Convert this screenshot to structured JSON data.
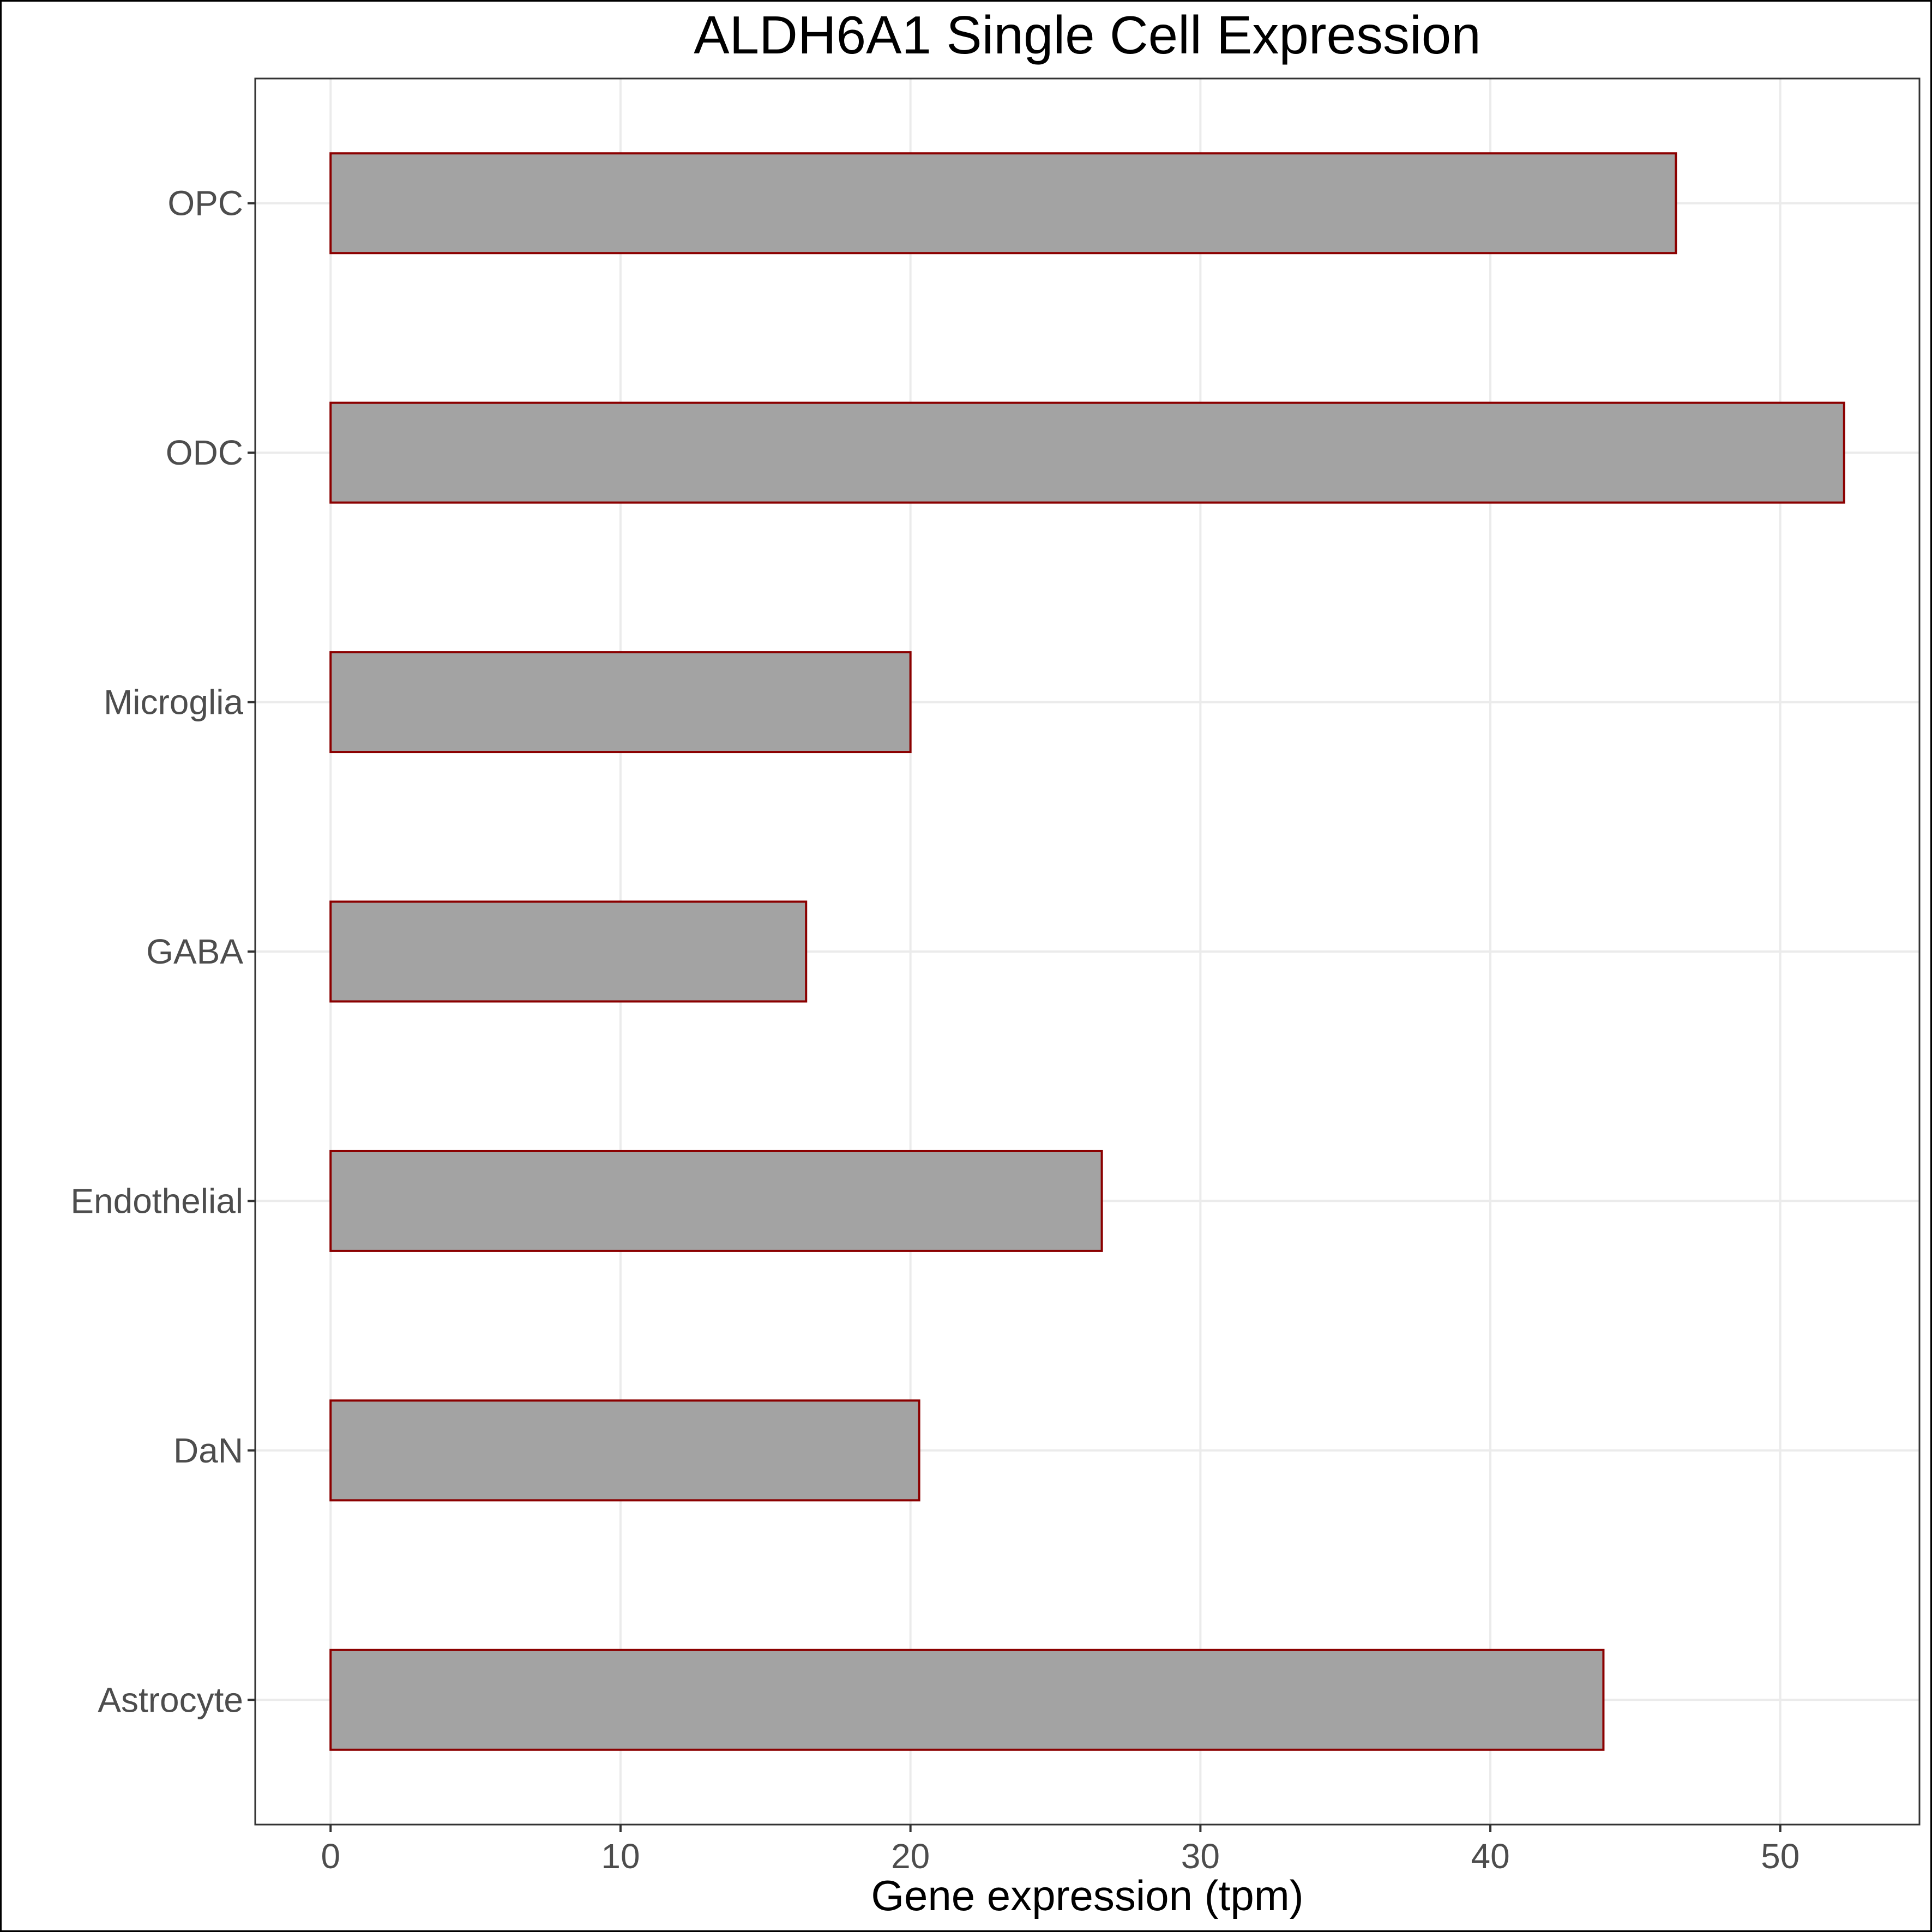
{
  "chart_data": {
    "type": "bar",
    "orientation": "horizontal",
    "title": "ALDH6A1 Single Cell Expression",
    "xlabel": "Gene expression (tpm)",
    "ylabel": "",
    "categories": [
      "OPC",
      "ODC",
      "Microglia",
      "GABA",
      "Endothelial",
      "DaN",
      "Astrocyte"
    ],
    "values": [
      46.4,
      52.2,
      20.0,
      16.4,
      26.6,
      20.3,
      43.9
    ],
    "xlim": [
      -2.6,
      54.8
    ],
    "x_ticks": [
      0,
      10,
      20,
      30,
      40,
      50
    ],
    "grid": true,
    "legend": "none",
    "colors": {
      "bar_fill": "#a3a3a3",
      "bar_stroke": "#8b0000",
      "grid": "#ebebeb",
      "panel_border": "#333333"
    }
  }
}
